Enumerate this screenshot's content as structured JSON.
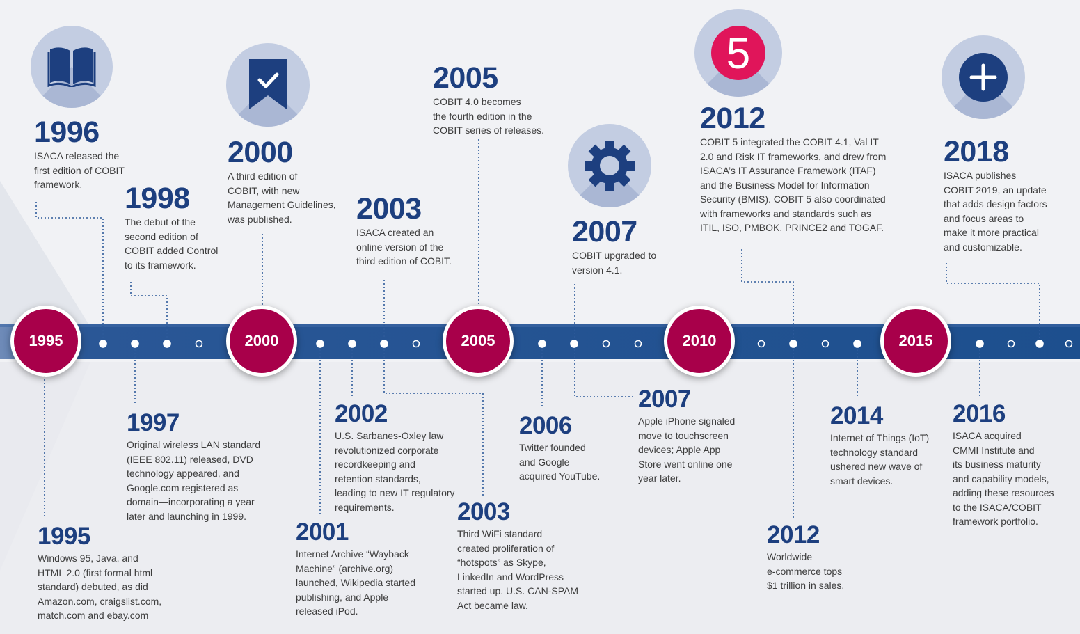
{
  "axis_markers": [
    "1995",
    "2000",
    "2005",
    "2010",
    "2015"
  ],
  "icons": [
    "open-book-icon",
    "bookmark-check-icon",
    "gear-icon",
    "cobit-5-logo-icon",
    "plus-icon"
  ],
  "colors": {
    "marker": "#a8004a",
    "band": "#1d4f8e",
    "year_text": "#1d3f7f",
    "icon_circle": "#c3cde2",
    "icon_fg": "#1d3f7f"
  },
  "events_top": [
    {
      "year": "1996",
      "text": "ISACA released the\nfirst edition of COBIT\nframework."
    },
    {
      "year": "1998",
      "text": "The debut of the\nsecond edition of\nCOBIT added Control\nto its framework."
    },
    {
      "year": "2000",
      "text": "A third edition of\nCOBIT, with new\nManagement Guidelines,\nwas published."
    },
    {
      "year": "2003",
      "text": "ISACA created an\nonline version of the\nthird edition of COBIT."
    },
    {
      "year": "2005",
      "text": "COBIT 4.0 becomes\nthe fourth edition in the\nCOBIT series of releases."
    },
    {
      "year": "2007",
      "text": "COBIT upgraded to\nversion 4.1."
    },
    {
      "year": "2012",
      "text": "COBIT 5 integrated the COBIT 4.1, Val IT\n2.0 and Risk IT frameworks, and drew from\nISACA’s IT Assurance Framework (ITAF)\nand the Business Model for Information\nSecurity (BMIS). COBIT 5 also coordinated\nwith frameworks and standards such as\nITIL, ISO, PMBOK, PRINCE2 and TOGAF."
    },
    {
      "year": "2018",
      "text": "ISACA publishes\nCOBIT 2019, an update\nthat adds design factors\nand focus areas to\nmake it more practical\nand customizable."
    }
  ],
  "events_bottom": [
    {
      "year": "1995",
      "text": "Windows 95, Java, and\nHTML 2.0 (first formal html\nstandard) debuted, as did\nAmazon.com, craigslist.com,\nmatch.com and ebay.com"
    },
    {
      "year": "1997",
      "text": "Original wireless LAN standard\n(IEEE 802.11) released, DVD\ntechnology appeared, and\nGoogle.com registered as\ndomain—incorporating a year\nlater and launching in 1999."
    },
    {
      "year": "2001",
      "text": "Internet Archive “Wayback\nMachine” (archive.org)\nlaunched, Wikipedia started\npublishing, and Apple\nreleased iPod."
    },
    {
      "year": "2002",
      "text": "U.S. Sarbanes-Oxley law\nrevolutionized corporate\nrecordkeeping and\nretention standards,\nleading to new IT regulatory\nrequirements."
    },
    {
      "year": "2003",
      "text": "Third WiFi standard\ncreated proliferation of\n“hotspots” as Skype,\nLinkedIn and WordPress\nstarted up. U.S. CAN-SPAM\nAct became law."
    },
    {
      "year": "2006",
      "text": "Twitter founded\nand Google\nacquired YouTube."
    },
    {
      "year": "2007",
      "text": "Apple iPhone signaled\nmove to touchscreen\ndevices; Apple App\nStore went online one\nyear later."
    },
    {
      "year": "2012",
      "text": "Worldwide\ne-commerce tops\n$1 trillion in sales."
    },
    {
      "year": "2014",
      "text": "Internet of Things (IoT)\ntechnology standard\nushered new wave of\nsmart devices."
    },
    {
      "year": "2016",
      "text": "ISACA acquired\nCMMI Institute and\nits business maturity\nand capability models,\nadding these resources\nto the ISACA/COBIT\nframework portfolio."
    }
  ]
}
